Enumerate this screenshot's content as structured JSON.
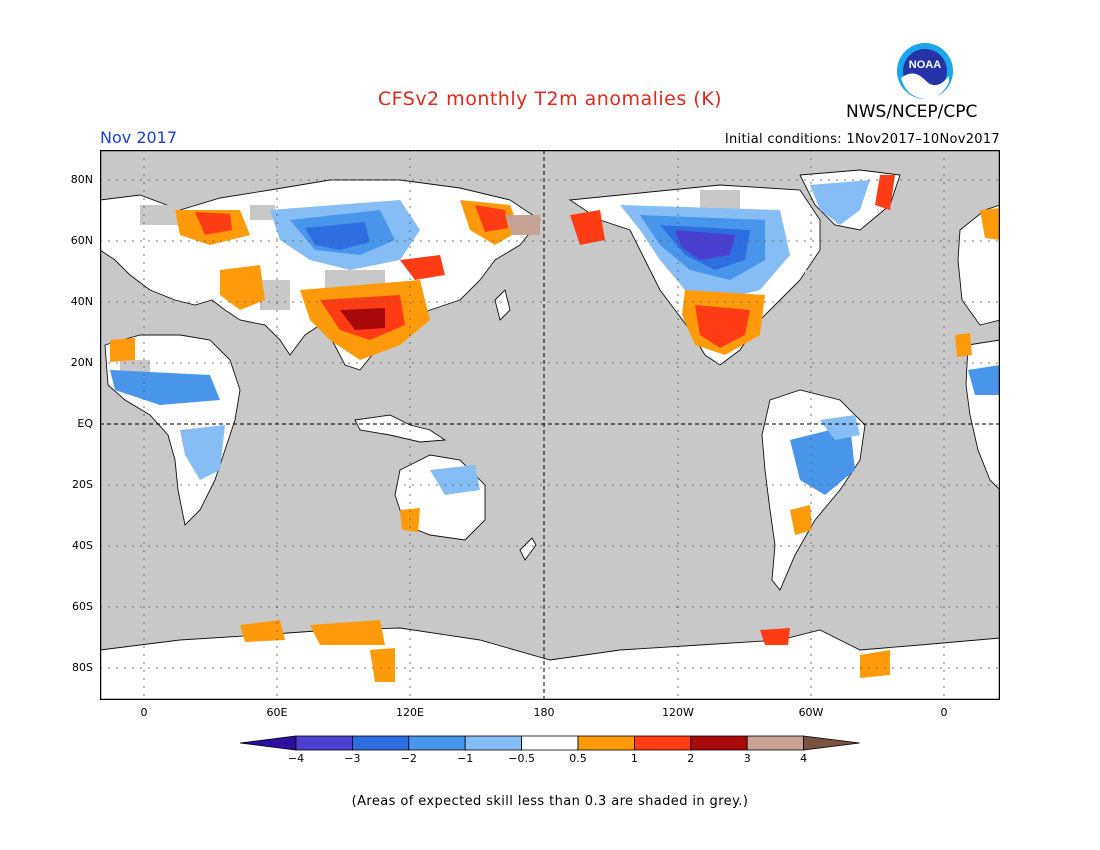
{
  "title": "CFSv2 monthly T2m anomalies (K)",
  "agency": "NWS/NCEP/CPC",
  "month": "Nov 2017",
  "initial_conditions": "Initial conditions: 1Nov2017–10Nov2017",
  "logo_text": "NOAA",
  "footnote": "(Areas of expected skill less than 0.3 are shaded in grey.)",
  "lat_labels": [
    "80N",
    "60N",
    "40N",
    "20N",
    "EQ",
    "20S",
    "40S",
    "60S",
    "80S"
  ],
  "lon_labels": [
    "0",
    "60E",
    "120E",
    "180",
    "120W",
    "60W",
    "0"
  ],
  "colorbar": {
    "labels": [
      "−4",
      "−3",
      "−2",
      "−1",
      "−0.5",
      "0.5",
      "1",
      "2",
      "3",
      "4"
    ],
    "colors": [
      "#2a0fa0",
      "#4a3fd0",
      "#2f6ee0",
      "#4a95ec",
      "#86bdf5",
      "#ffffff",
      "#ff9a0a",
      "#ff3c14",
      "#a80a0a",
      "#c7a396",
      "#7a5240"
    ]
  },
  "colors": {
    "grey_skill": "#c8c8c8",
    "ocean": "#c8c8c8",
    "title_red": "#e0281e",
    "month_blue": "#1a3ddb"
  }
}
